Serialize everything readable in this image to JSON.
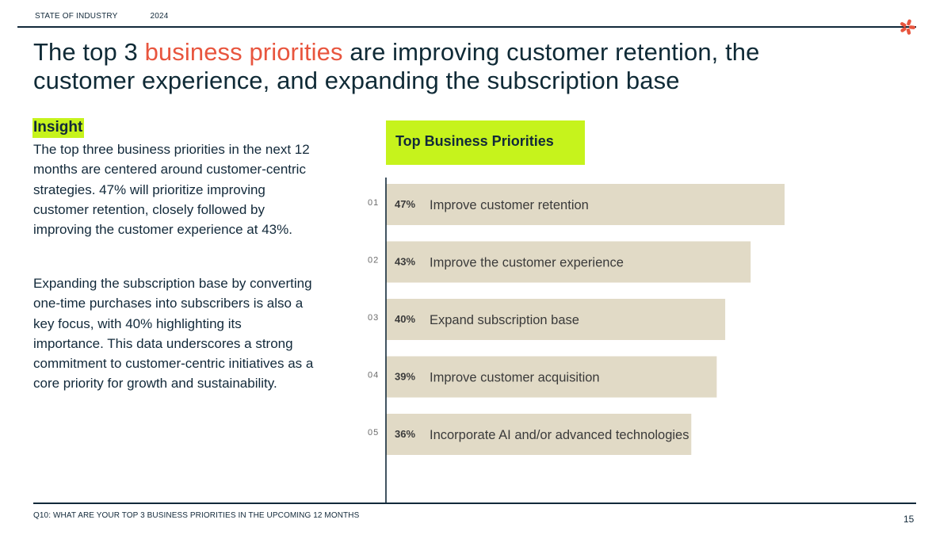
{
  "header": {
    "report_name": "STATE OF INDUSTRY",
    "year": "2024"
  },
  "title": {
    "part1": "The top 3 ",
    "accent": "business priorities",
    "part2": " are improving customer retention, the customer experience, and expanding the subscription base",
    "accent_color": "#e8553e"
  },
  "insight": {
    "label": "Insight",
    "paragraph1": "The top three business priorities in the next 12 months are centered around customer-centric strategies. 47% will prioritize improving customer retention, closely followed by improving the customer experience at 43%.",
    "paragraph2": "Expanding the subscription base by converting one-time purchases into subscribers is also a key focus, with 40% highlighting its importance. This data underscores a strong commitment to customer-centric initiatives as a core priority for growth and sustainability.",
    "highlight_color": "#c6f31c"
  },
  "chart_data": {
    "type": "bar",
    "orientation": "horizontal",
    "title": "Top Business Priorities",
    "ranks": [
      "01",
      "02",
      "03",
      "04",
      "05"
    ],
    "categories": [
      "Improve customer retention",
      "Improve the customer experience",
      "Expand subscription base",
      "Improve customer acquisition",
      "Incorporate AI and/or advanced technologies"
    ],
    "values": [
      47,
      43,
      40,
      39,
      36
    ],
    "value_labels": [
      "47%",
      "43%",
      "40%",
      "39%",
      "36%"
    ],
    "unit": "%",
    "bar_color": "#e1dac6",
    "grid": false
  },
  "footer": {
    "question": "Q10:  WHAT ARE YOUR TOP 3 BUSINESS PRIORITIES IN THE UPCOMING 12 MONTHS",
    "page_number": "15"
  },
  "icons": {
    "logo": "asterisk-logo-icon"
  }
}
